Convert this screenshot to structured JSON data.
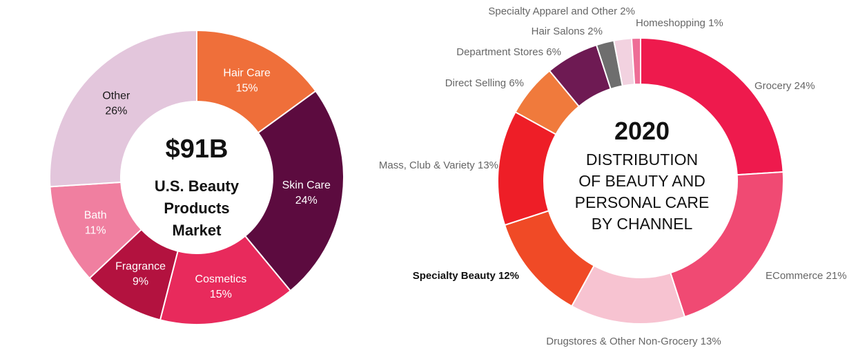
{
  "chart_data": [
    {
      "type": "pie",
      "center_title": "$91B",
      "center_subtitle": [
        "U.S. Beauty",
        "Products",
        "Market"
      ],
      "categories": [
        "Hair Care",
        "Skin Care",
        "Cosmetics",
        "Fragrance",
        "Bath",
        "Other"
      ],
      "values": [
        15,
        24,
        15,
        9,
        11,
        26
      ],
      "value_labels": [
        "15%",
        "24%",
        "15%",
        "9%",
        "11%",
        "26%"
      ],
      "colors": [
        "#EF6F3A",
        "#5C0B3F",
        "#E82A5C",
        "#B3123F",
        "#F07FA0",
        "#E3C6DC"
      ]
    },
    {
      "type": "pie",
      "center_title": "2020",
      "center_subtitle": [
        "DISTRIBUTION",
        "OF BEAUTY AND",
        "PERSONAL CARE",
        "BY CHANNEL"
      ],
      "categories": [
        "Grocery",
        "ECommerce",
        "Drugstores & Other Non-Grocery",
        "Specialty Beauty",
        "Mass, Club & Variety",
        "Direct Selling",
        "Department Stores",
        "Hair Salons",
        "Specialty Apparel and Other",
        "Homeshopping"
      ],
      "values": [
        24,
        21,
        13,
        12,
        13,
        6,
        6,
        2,
        2,
        1
      ],
      "labels": [
        "Grocery 24%",
        "ECommerce 21%",
        "Drugstores & Other Non-Grocery 13%",
        "Specialty Beauty 12%",
        "Mass, Club & Variety 13%",
        "Direct Selling 6%",
        "Department Stores 6%",
        "Hair Salons 2%",
        "Specialty Apparel and Other 2%",
        "Homeshopping 1%"
      ],
      "colors": [
        "#EE1A4D",
        "#F04A73",
        "#F7C3D1",
        "#F04A26",
        "#EE1E27",
        "#F07A3C",
        "#6E1A53",
        "#6E6E6E",
        "#F2D2E0",
        "#EE6D96"
      ]
    }
  ]
}
